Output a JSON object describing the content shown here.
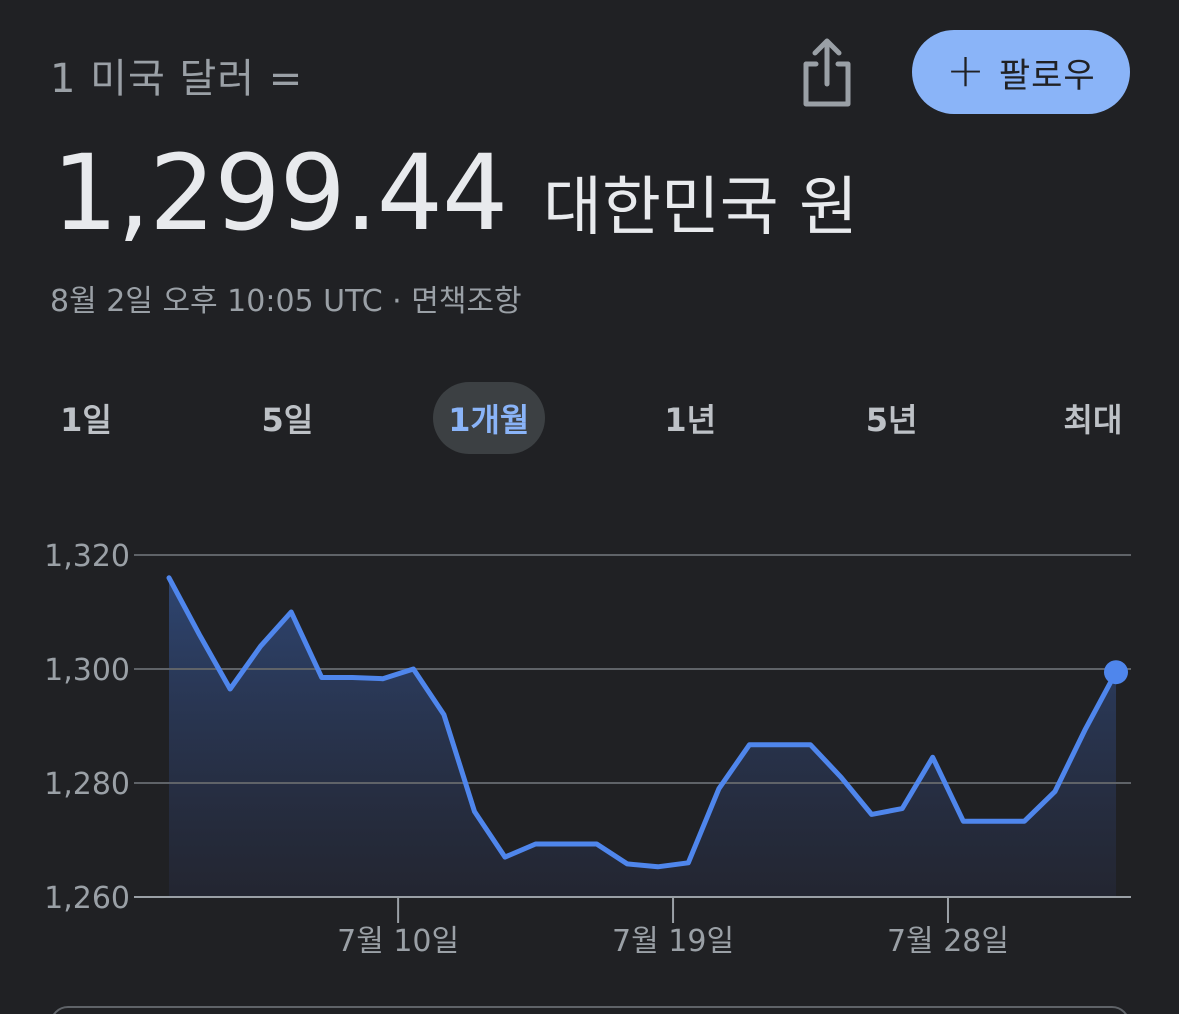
{
  "header": {
    "from_label": "1 미국 달러 =",
    "follow_label": "팔로우",
    "share_icon": "share-icon",
    "plus_icon": "plus-icon"
  },
  "rate": {
    "value": "1,299.44",
    "currency": "대한민국 원"
  },
  "timestamp": "8월 2일 오후 10:05 UTC · 면책조항",
  "tabs": [
    {
      "label": "1일",
      "active": false
    },
    {
      "label": "5일",
      "active": false
    },
    {
      "label": "1개월",
      "active": true
    },
    {
      "label": "1년",
      "active": false
    },
    {
      "label": "5년",
      "active": false
    },
    {
      "label": "최대",
      "active": false
    }
  ],
  "colors": {
    "background": "#202124",
    "accent": "#8ab4f8",
    "line": "#4f86ec",
    "grid": "#5f6368",
    "muted_text": "#9aa0a6"
  },
  "chart_data": {
    "type": "area",
    "title": "",
    "xlabel": "",
    "ylabel": "",
    "ylim": [
      1260,
      1320
    ],
    "yticks": [
      "1,320",
      "1,300",
      "1,280",
      "1,260"
    ],
    "ytick_values": [
      1320,
      1300,
      1280,
      1260
    ],
    "grid": true,
    "x_start": "7월 3일",
    "xticks": [
      {
        "label": "7월 10일",
        "day": 7.5
      },
      {
        "label": "7월 19일",
        "day": 16.5
      },
      {
        "label": "7월 28일",
        "day": 25.5
      }
    ],
    "series": [
      {
        "name": "",
        "x": [
          0,
          1,
          2,
          3,
          4,
          5,
          6,
          7,
          8,
          9,
          10,
          11,
          12,
          13,
          14,
          15,
          16,
          17,
          18,
          19,
          20,
          21,
          22,
          23,
          24,
          25,
          26,
          27,
          28,
          29,
          30,
          31
        ],
        "values": [
          1316,
          1306,
          1296.5,
          1304,
          1310,
          1298.5,
          1298.5,
          1298.3,
          1300,
          1292,
          1275,
          1267,
          1269.3,
          1269.3,
          1269.3,
          1265.8,
          1265.3,
          1266,
          1279,
          1286.7,
          1286.7,
          1286.7,
          1281,
          1274.5,
          1275.5,
          1284.5,
          1273.3,
          1273.3,
          1273.3,
          1278.5,
          1289.5,
          1299.44
        ]
      }
    ]
  }
}
